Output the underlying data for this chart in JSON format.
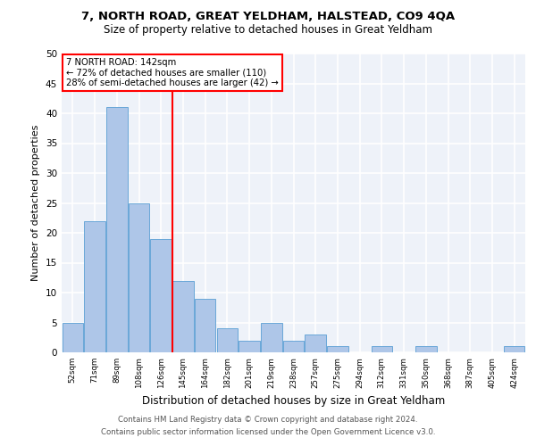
{
  "title1": "7, NORTH ROAD, GREAT YELDHAM, HALSTEAD, CO9 4QA",
  "title2": "Size of property relative to detached houses in Great Yeldham",
  "xlabel": "Distribution of detached houses by size in Great Yeldham",
  "ylabel": "Number of detached properties",
  "categories": [
    "52sqm",
    "71sqm",
    "89sqm",
    "108sqm",
    "126sqm",
    "145sqm",
    "164sqm",
    "182sqm",
    "201sqm",
    "219sqm",
    "238sqm",
    "257sqm",
    "275sqm",
    "294sqm",
    "312sqm",
    "331sqm",
    "350sqm",
    "368sqm",
    "387sqm",
    "405sqm",
    "424sqm"
  ],
  "values": [
    5,
    22,
    41,
    25,
    19,
    12,
    9,
    4,
    2,
    5,
    2,
    3,
    1,
    0,
    1,
    0,
    1,
    0,
    0,
    0,
    1
  ],
  "bar_color": "#aec6e8",
  "bar_edge_color": "#5a9fd4",
  "annotation_text1": "7 NORTH ROAD: 142sqm",
  "annotation_text2": "← 72% of detached houses are smaller (110)",
  "annotation_text3": "28% of semi-detached houses are larger (42) →",
  "annotation_box_color": "white",
  "annotation_box_edge_color": "red",
  "vline_color": "red",
  "vline_x": 4.525,
  "ylim": [
    0,
    50
  ],
  "yticks": [
    0,
    5,
    10,
    15,
    20,
    25,
    30,
    35,
    40,
    45,
    50
  ],
  "footer1": "Contains HM Land Registry data © Crown copyright and database right 2024.",
  "footer2": "Contains public sector information licensed under the Open Government Licence v3.0.",
  "plot_bg_color": "#eef2f9"
}
